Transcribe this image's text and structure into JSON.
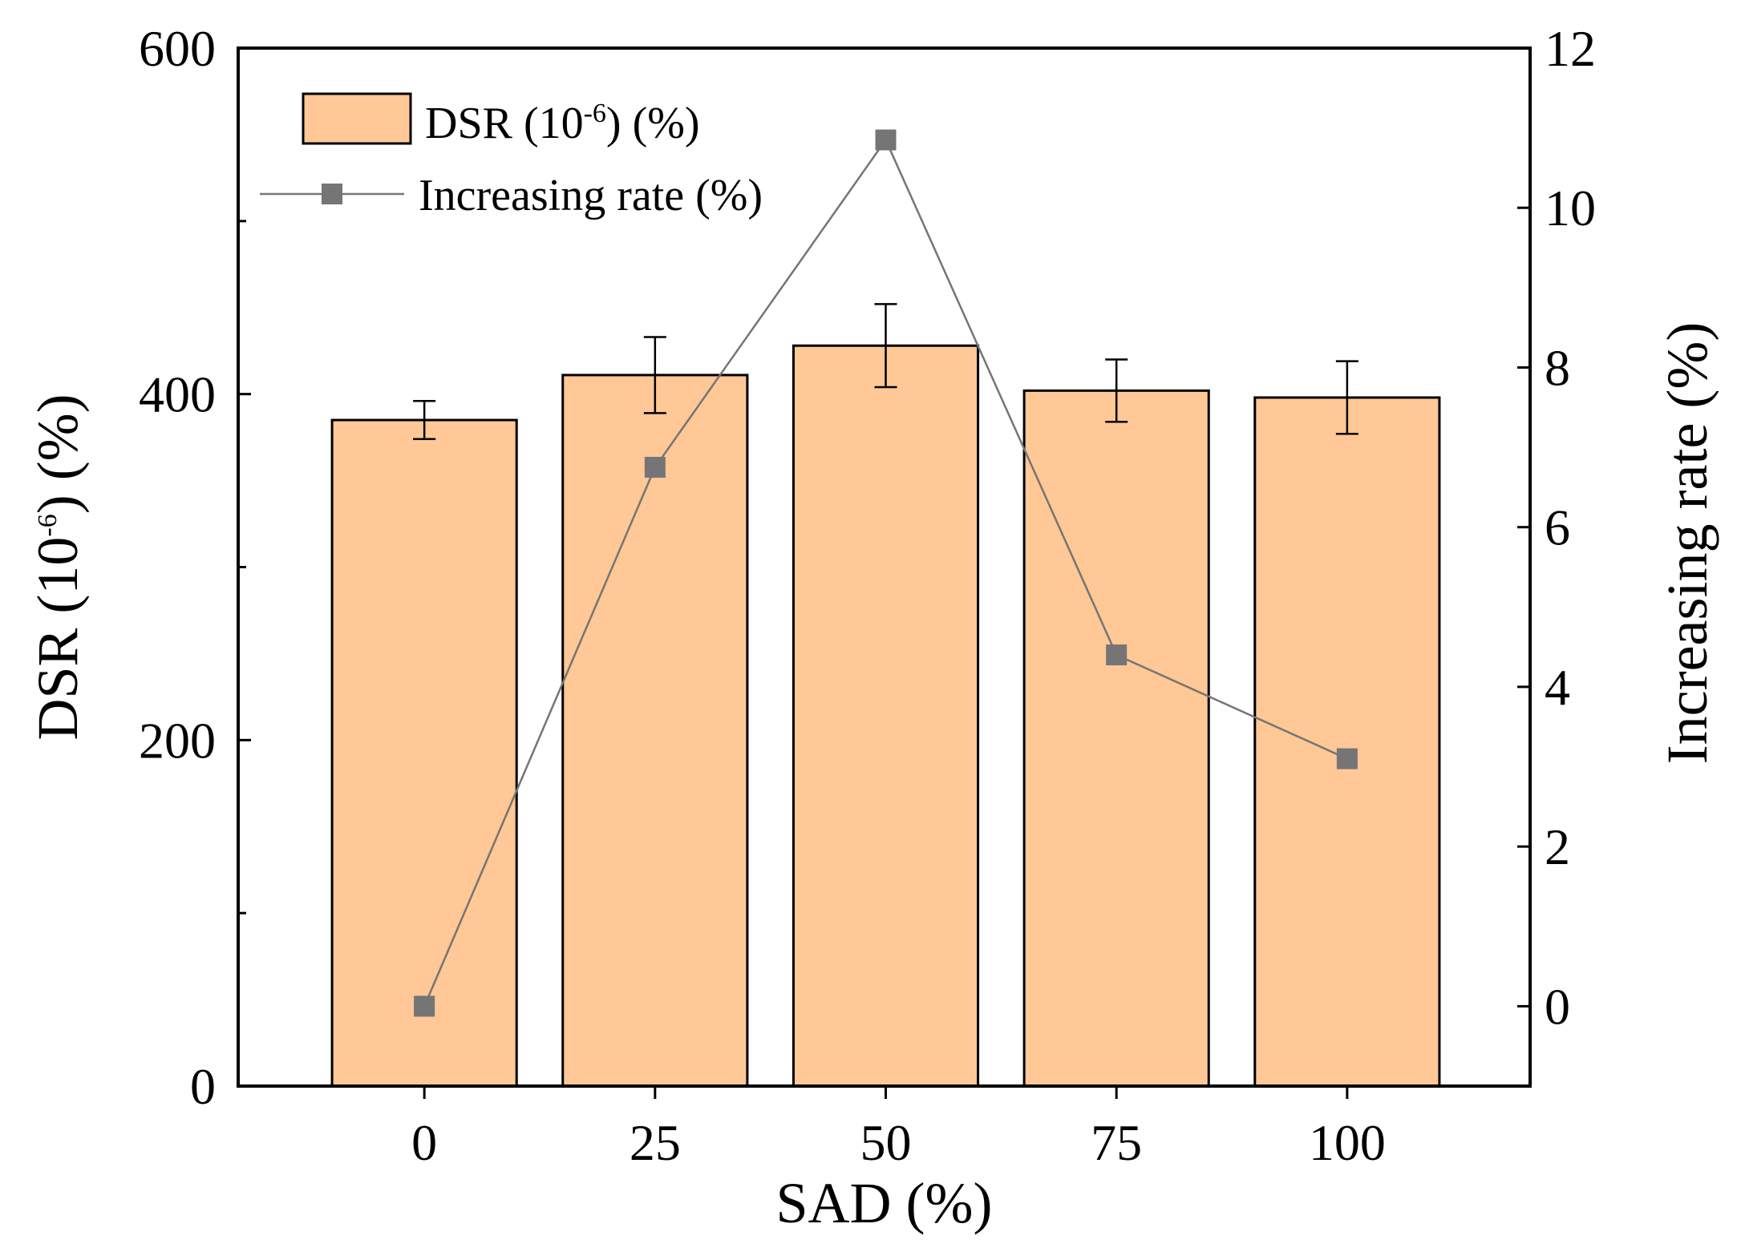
{
  "chart_data": {
    "type": "bar",
    "categories": [
      "0",
      "25",
      "50",
      "75",
      "100"
    ],
    "xlabel": "SAD (%)",
    "ylabel": {
      "prefix": "DSR (10",
      "sup": "-6",
      "suffix": ") (%)"
    },
    "ylabel_right": "Increasing rate (%)",
    "ylim": [
      0,
      600
    ],
    "ylim_right": [
      -1,
      12
    ],
    "yticks": [
      "0",
      "200",
      "400",
      "600"
    ],
    "yticks_minor": [
      100,
      300,
      500
    ],
    "yticks_right": [
      "0",
      "2",
      "4",
      "6",
      "8",
      "10",
      "12"
    ],
    "grid": false,
    "legend_position": "top-left",
    "series": [
      {
        "name": "DSR (10-6) (%)",
        "legend": {
          "prefix": "DSR (10",
          "sup": "-6",
          "suffix": ") (%)"
        },
        "type": "bar",
        "axis": "left",
        "values": [
          385,
          411,
          428,
          402,
          398
        ],
        "errors": [
          11,
          22,
          24,
          18,
          21
        ],
        "color": "#FFC896"
      },
      {
        "name": "Increasing rate (%)",
        "legend": {
          "text": "Increasing rate (%)"
        },
        "type": "line",
        "axis": "right",
        "values": [
          0,
          6.75,
          10.85,
          4.4,
          3.1
        ],
        "color": "#757575"
      }
    ]
  }
}
